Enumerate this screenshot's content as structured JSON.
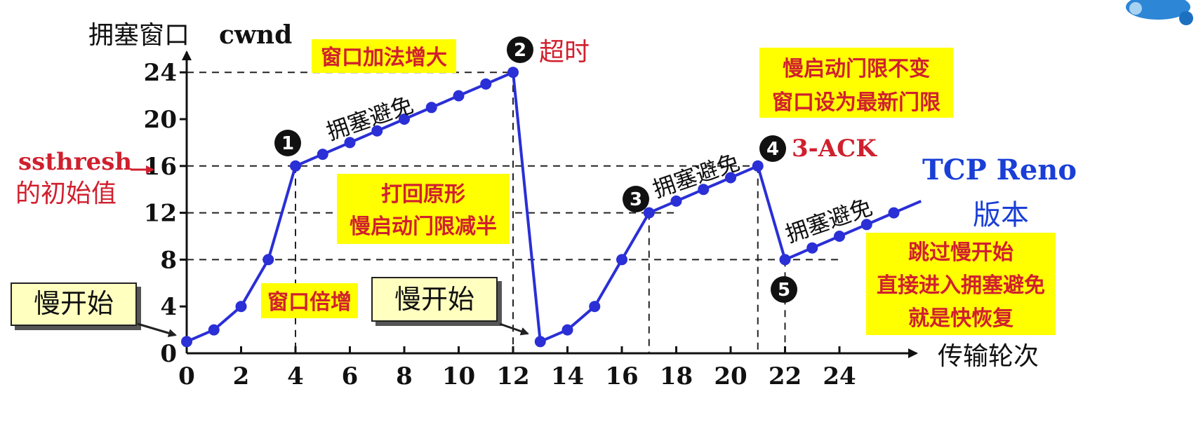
{
  "chart_data": {
    "type": "line",
    "ylabel_cn": "拥塞窗口",
    "ylabel_en": "cwnd",
    "xlabel": "传输轮次",
    "xticks": [
      "0",
      "2",
      "4",
      "6",
      "8",
      "10",
      "12",
      "14",
      "16",
      "18",
      "20",
      "22",
      "24"
    ],
    "yticks": [
      "0",
      "4",
      "8",
      "12",
      "16",
      "20",
      "24"
    ],
    "xlim": [
      0,
      27
    ],
    "ylim": [
      0,
      26
    ],
    "series": [
      {
        "x": [
          0,
          1,
          2,
          3,
          4,
          5,
          6,
          7,
          8,
          9,
          10,
          11,
          12,
          13,
          14,
          15,
          16,
          17,
          18,
          19,
          20,
          21,
          22,
          23,
          24,
          25,
          26
        ],
        "y": [
          1,
          2,
          4,
          8,
          16,
          17,
          18,
          19,
          20,
          21,
          22,
          23,
          24,
          1,
          2,
          4,
          8,
          12,
          13,
          14,
          15,
          16,
          8,
          9,
          10,
          11,
          12
        ]
      }
    ],
    "line_color": "#2a2fd6",
    "reference_lines": [
      {
        "y": 24,
        "x_to": 12
      },
      {
        "y": 16,
        "x_to": 21
      },
      {
        "y": 12,
        "x_to": 18
      },
      {
        "y": 8,
        "x_to": 24
      }
    ],
    "vertical_refs": [
      4,
      12,
      17,
      21,
      22
    ]
  },
  "labels": {
    "ssthresh_en": "ssthresh",
    "ssthresh_cn": "的初始值",
    "congestion_avoidance": "拥塞避免",
    "timeout": "超时",
    "three_ack": "3-ACK",
    "reno_en": "TCP Reno",
    "reno_cn": "版本",
    "markers": [
      "1",
      "2",
      "3",
      "4",
      "5"
    ]
  },
  "notes": {
    "window_add": "窗口加法增大",
    "reset": [
      "打回原形",
      "慢启动门限减半"
    ],
    "threshold_same": [
      "慢启动门限不变",
      "窗口设为最新门限"
    ],
    "window_double": "窗口倍增",
    "fast_recovery": [
      "跳过慢开始",
      "直接进入拥塞避免",
      "就是快恢复"
    ]
  },
  "boxes": {
    "slow_start_1": "慢开始",
    "slow_start_2": "慢开始"
  },
  "colors": {
    "highlight": "#ffff00",
    "box_fill": "#ffffc0",
    "red": "#d0202e",
    "blue": "#1a3fd6"
  }
}
